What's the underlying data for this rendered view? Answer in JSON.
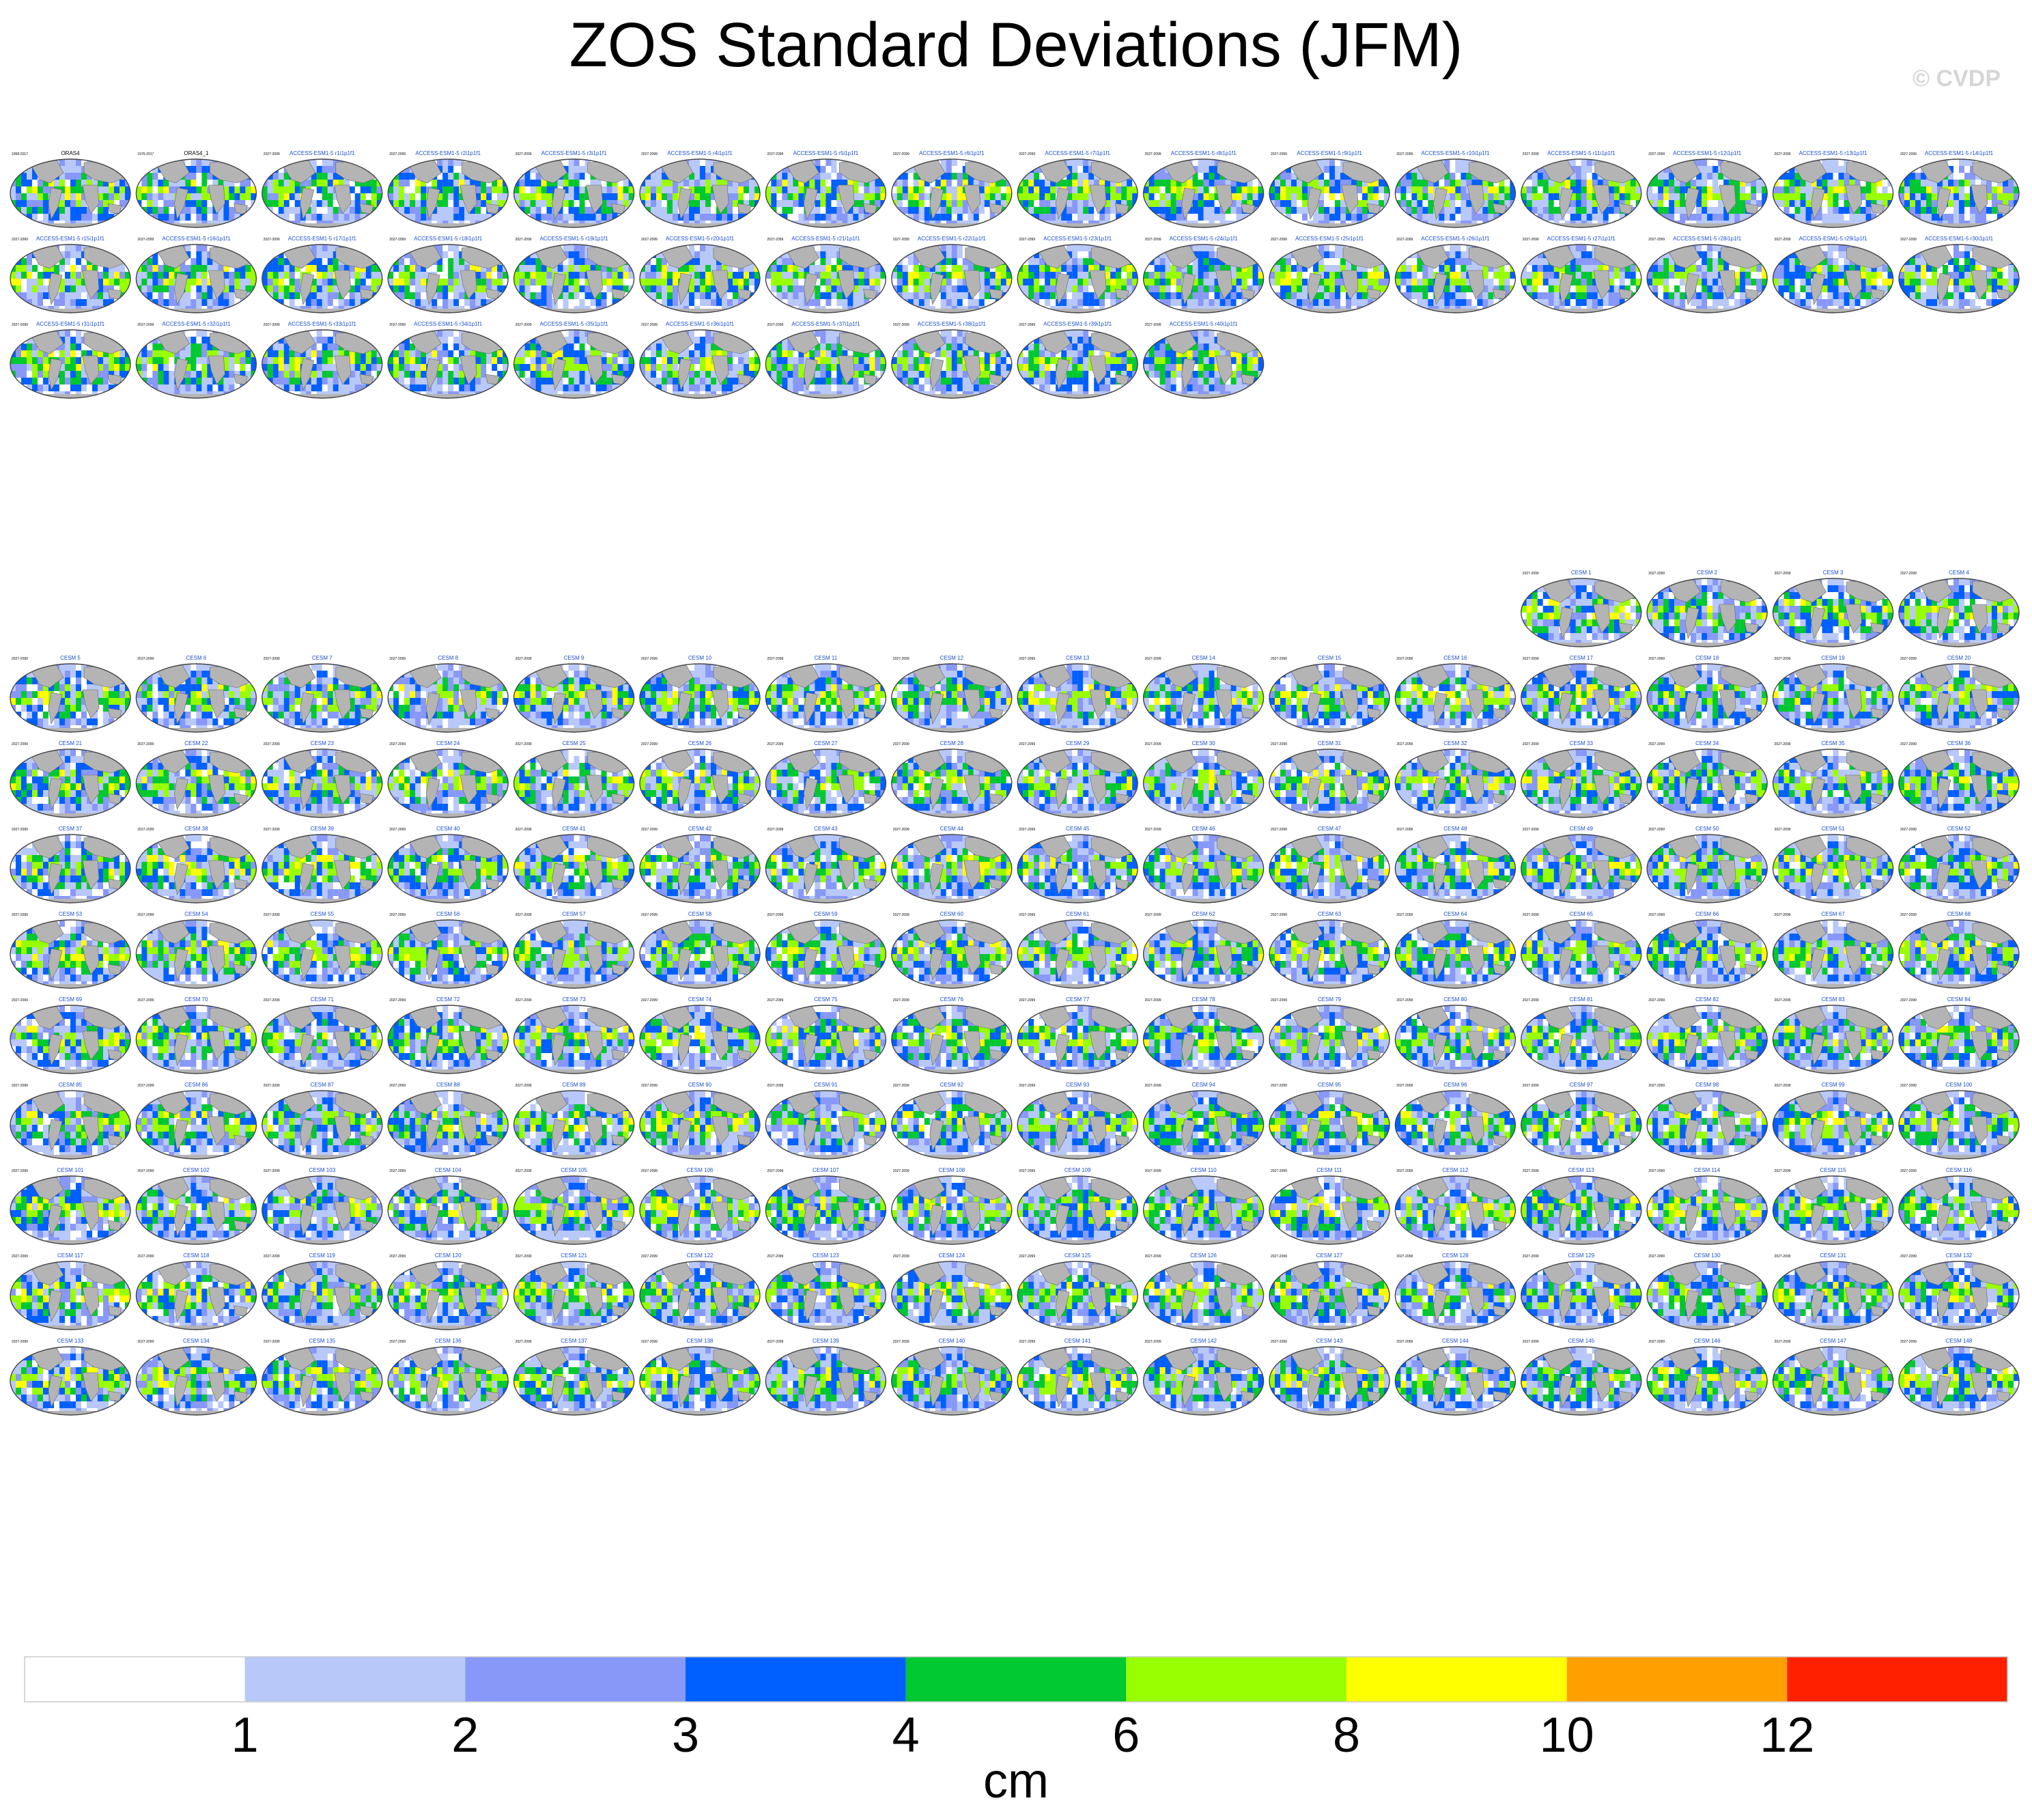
{
  "figure": {
    "title": "ZOS Standard Deviations (JFM)",
    "watermark": "© CVDP"
  },
  "chart_data": {
    "type": "heatmap",
    "title": "ZOS Standard Deviations (JFM)",
    "description_of_panels": "Grid of global map panels of JFM sea surface height standard deviation; one panel per dataset/ensemble member.",
    "groups": [
      {
        "name": "ACCESS-ESM1-5",
        "observations": [
          "ORAS4",
          "ORAS4_1"
        ],
        "observation_periods": [
          "1958-2017",
          "1976-2017"
        ],
        "member_period": "2027-2099",
        "members": 40,
        "rows": [
          16,
          16,
          10
        ]
      },
      {
        "name": "CESM",
        "member_period": "2027-2099",
        "members": 148,
        "rows": [
          4,
          16,
          16,
          16,
          16,
          16,
          16,
          16,
          16,
          16
        ],
        "first_row_aligned": "right"
      }
    ],
    "colorbar": {
      "label": "cm",
      "levels": [
        1,
        2,
        3,
        4,
        6,
        8,
        10,
        12
      ],
      "tick_labels": [
        "1",
        "2",
        "3",
        "4",
        "6",
        "8",
        "10",
        "12"
      ],
      "colors": [
        "#ffffff",
        "#b8c8f8",
        "#8898f8",
        "#0060ff",
        "#00c830",
        "#98ff00",
        "#ffff00",
        "#ffa000",
        "#ff2000"
      ]
    }
  },
  "colors": {
    "land": "#b4b4b4",
    "ocean_low": "#b8c8f8",
    "map_outline": "#555555"
  }
}
